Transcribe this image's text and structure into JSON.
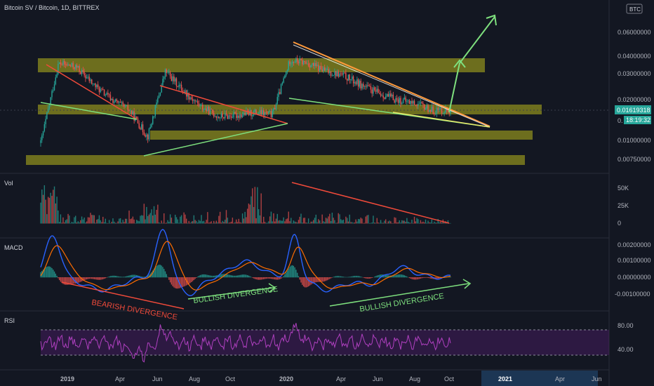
{
  "header": {
    "title": "Bitcoin SV / Bitcoin, 1D, BITTREX"
  },
  "badge": {
    "currency": "BTC"
  },
  "price_axis": {
    "ticks": [
      "0.06000000",
      "0.04000000",
      "0.03000000",
      "0.02000000",
      "0.01000000",
      "0.00750000"
    ],
    "current_price": "0.01619318",
    "countdown": "18:19:32",
    "small_label": "0."
  },
  "volume_axis": {
    "ticks": [
      "50K",
      "25K",
      "0"
    ]
  },
  "macd_axis": {
    "ticks": [
      "0.00200000",
      "0.00100000",
      "0.00000000",
      "-0.00100000"
    ]
  },
  "rsi_axis": {
    "ticks": [
      "80.00",
      "40.00"
    ]
  },
  "time_axis": {
    "labels": [
      "2019",
      "Apr",
      "Jun",
      "Aug",
      "Oct",
      "2020",
      "Apr",
      "Jun",
      "Aug",
      "Oct",
      "2021",
      "Apr",
      "Jun"
    ]
  },
  "panes": {
    "vol": "Vol",
    "macd": "MACD",
    "rsi": "RSI"
  },
  "annotations": {
    "bearish": "BEARISH DIVERGENCE",
    "bullish1": "BULLISH DIVERGENCE",
    "bullish2": "BULLISH DIVERGENCE"
  },
  "colors": {
    "background": "#131722",
    "zone": "#8c8c1e",
    "green": "#7ee07e",
    "red": "#f04a3a",
    "orange": "#ff9a3c",
    "rsi": "#9c27b0",
    "macd": "#2962ff",
    "signal": "#ff6d00"
  },
  "chart_data": {
    "type": "line",
    "title": "Bitcoin SV / Bitcoin, 1D, BITTREX",
    "xlabel": "",
    "ylabel": "",
    "y_scale": "log",
    "series": [
      {
        "x": [
          "2018-11",
          "2018-12",
          "2019-01",
          "2019-02",
          "2019-03",
          "2019-04",
          "2019-05",
          "2019-06",
          "2019-07",
          "2019-08",
          "2019-09",
          "2019-10",
          "2019-11",
          "2019-12",
          "2020-01",
          "2020-02",
          "2020-03",
          "2020-04",
          "2020-05",
          "2020-06",
          "2020-07",
          "2020-08",
          "2020-09",
          "2020-10"
        ],
        "values": [
          0.0095,
          0.034,
          0.032,
          0.024,
          0.019,
          0.016,
          0.0105,
          0.03,
          0.022,
          0.017,
          0.0145,
          0.0148,
          0.0155,
          0.015,
          0.036,
          0.034,
          0.03,
          0.028,
          0.024,
          0.021,
          0.019,
          0.018,
          0.016,
          0.0162
        ]
      }
    ],
    "last_price": 0.01619318
  }
}
